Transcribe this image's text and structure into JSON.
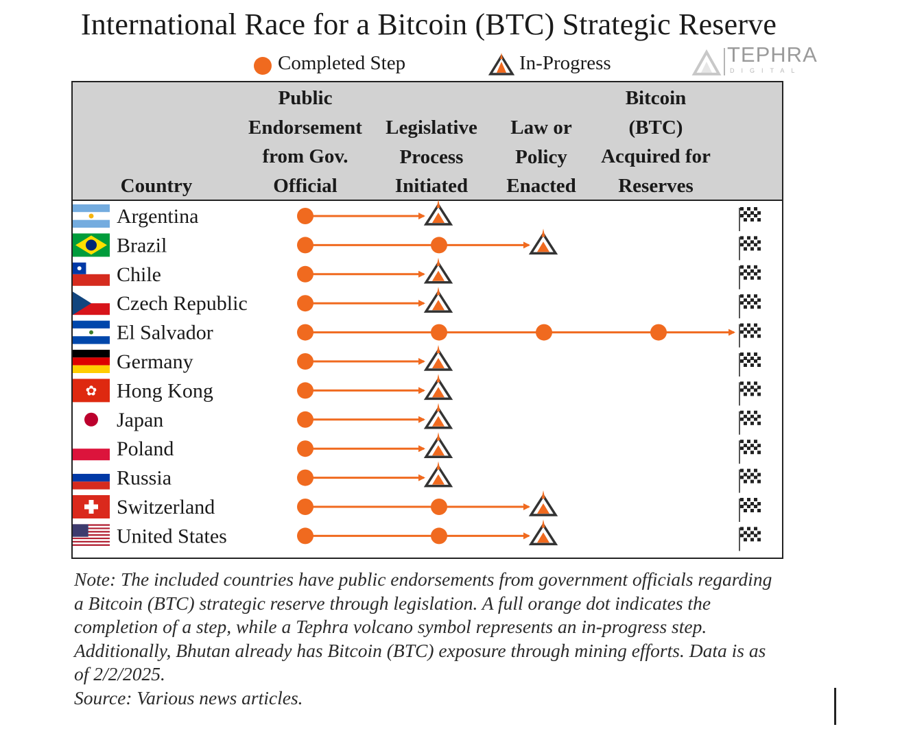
{
  "title": "International Race for a Bitcoin (BTC) Strategic Reserve",
  "legend": {
    "completed_label": "Completed Step",
    "inprogress_label": "In-Progress"
  },
  "logo": {
    "name": "TEPHRA",
    "sub": "DIGITAL"
  },
  "colors": {
    "accent": "#f06a1f",
    "header_band": "#d2d2d2",
    "volcano_outline": "#333333"
  },
  "columns": {
    "country": "Country",
    "stage_headers": [
      [
        "Public",
        "Endorsement",
        "from Gov.",
        "Official"
      ],
      [
        "Legislative",
        "Process",
        "Initiated"
      ],
      [
        "Law or",
        "Policy",
        "Enacted"
      ],
      [
        "Bitcoin",
        "(BTC)",
        "Acquired for",
        "Reserves"
      ]
    ]
  },
  "chart_data": {
    "type": "table",
    "title": "International Race for a Bitcoin (BTC) Strategic Reserve",
    "stages": [
      "Public Endorsement from Gov. Official",
      "Legislative Process Initiated",
      "Law or Policy Enacted",
      "Bitcoin (BTC) Acquired for Reserves"
    ],
    "rows": [
      {
        "country": "Argentina",
        "flag": "argentina-flag",
        "completed": 1,
        "in_progress": 2
      },
      {
        "country": "Brazil",
        "flag": "brazil-flag",
        "completed": 2,
        "in_progress": 3
      },
      {
        "country": "Chile",
        "flag": "chile-flag",
        "completed": 1,
        "in_progress": 2
      },
      {
        "country": "Czech Republic",
        "flag": "czech-republic-flag",
        "completed": 1,
        "in_progress": 2
      },
      {
        "country": "El Salvador",
        "flag": "el-salvador-flag",
        "completed": 4,
        "in_progress": null
      },
      {
        "country": "Germany",
        "flag": "germany-flag",
        "completed": 1,
        "in_progress": 2
      },
      {
        "country": "Hong Kong",
        "flag": "hong-kong-flag",
        "completed": 1,
        "in_progress": 2
      },
      {
        "country": "Japan",
        "flag": "japan-flag",
        "completed": 1,
        "in_progress": 2
      },
      {
        "country": "Poland",
        "flag": "poland-flag",
        "completed": 1,
        "in_progress": 2
      },
      {
        "country": "Russia",
        "flag": "russia-flag",
        "completed": 1,
        "in_progress": 2
      },
      {
        "country": "Switzerland",
        "flag": "switzerland-flag",
        "completed": 2,
        "in_progress": 3
      },
      {
        "country": "United States",
        "flag": "united-states-flag",
        "completed": 2,
        "in_progress": 3
      }
    ],
    "finish_marker": "checkered-flag-icon"
  },
  "note": {
    "text": "Note: The included countries have public endorsements from government officials regarding a Bitcoin (BTC) strategic reserve through legislation. A full orange dot indicates the completion of a step, while a Tephra volcano symbol represents an in-progress step. Additionally, Bhutan already has Bitcoin (BTC) exposure through mining efforts. Data is as of 2/2/2025.",
    "source": "Source: Various news articles."
  }
}
